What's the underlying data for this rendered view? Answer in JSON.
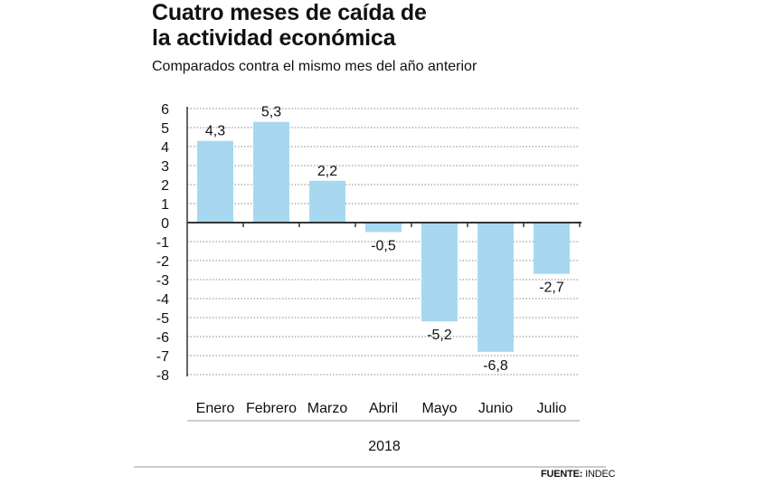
{
  "header": {
    "title_line1": "Cuatro meses de caída de",
    "title_line2": "la actividad económica",
    "subtitle": "Comparados contra el mismo mes del año anterior"
  },
  "footer": {
    "source_label": "FUENTE:",
    "source_value": "INDEC"
  },
  "colors": {
    "bar": "#a8d8f0",
    "grid": "#888888",
    "axis": "#333333",
    "text": "#111111"
  },
  "chart_data": {
    "type": "bar",
    "title": "Cuatro meses de caída de la actividad económica",
    "subtitle": "Comparados contra el mismo mes del año anterior",
    "categories": [
      "Enero",
      "Febrero",
      "Marzo",
      "Abril",
      "Mayo",
      "Junio",
      "Julio"
    ],
    "values": [
      4.3,
      5.3,
      2.2,
      -0.5,
      -5.2,
      -6.8,
      -2.7
    ],
    "value_labels": [
      "4,3",
      "5,3",
      "2,2",
      "-0,5",
      "-5,2",
      "-6,8",
      "-2,7"
    ],
    "xlabel": "2018",
    "ylabel": "",
    "ylim": [
      -8,
      6
    ],
    "yticks": [
      6,
      5,
      4,
      3,
      2,
      1,
      0,
      -1,
      -2,
      -3,
      -4,
      -5,
      -6,
      -7,
      -8
    ],
    "grid": true,
    "legend": "none"
  }
}
